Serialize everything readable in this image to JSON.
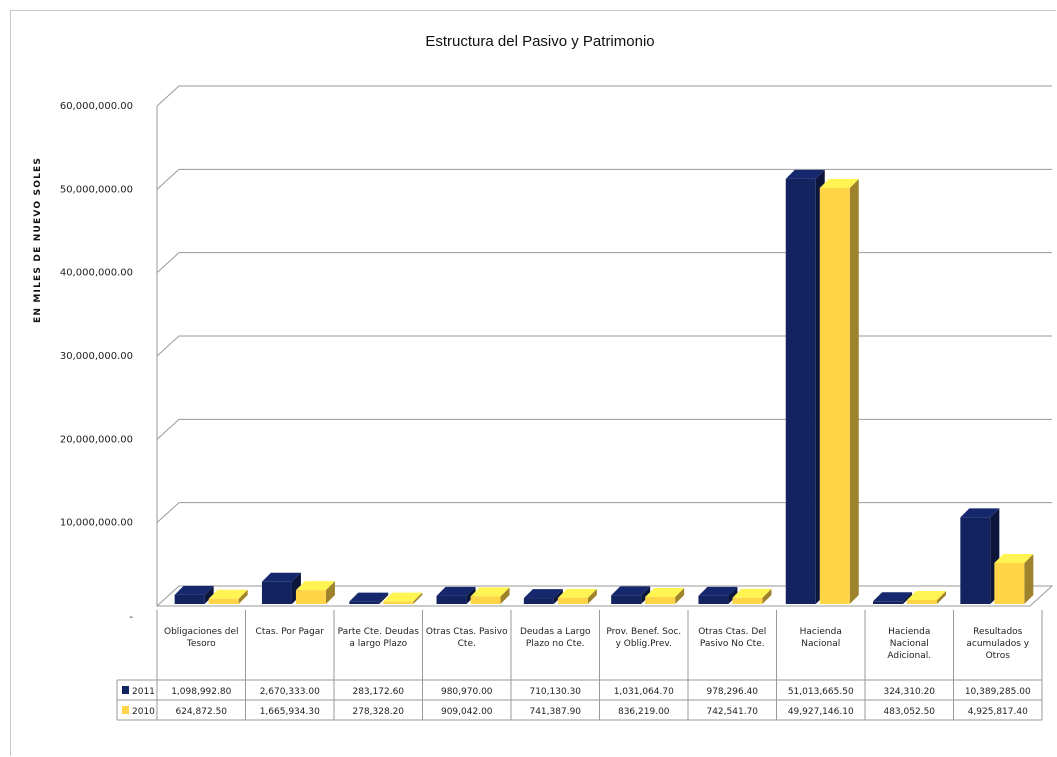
{
  "chart_data": {
    "type": "bar",
    "title": "Estructura del Pasivo y Patrimonio",
    "ylabel": "EN MILES DE NUEVO SOLES",
    "xlabel": "",
    "ylim": [
      0,
      60000000
    ],
    "y_ticks": [
      {
        "value": 0,
        "label": "-"
      },
      {
        "value": 10000000,
        "label": "10,000,000.00"
      },
      {
        "value": 20000000,
        "label": "20,000,000.00"
      },
      {
        "value": 30000000,
        "label": "30,000,000.00"
      },
      {
        "value": 40000000,
        "label": "40,000,000.00"
      },
      {
        "value": 50000000,
        "label": "50,000,000.00"
      },
      {
        "value": 60000000,
        "label": "60,000,000.00"
      }
    ],
    "grid": true,
    "legend_position": "data-table",
    "categories": [
      [
        "Obligaciones del",
        "Tesoro"
      ],
      [
        "Ctas. Por Pagar"
      ],
      [
        "Parte Cte. Deudas",
        "a largo Plazo"
      ],
      [
        "Otras Ctas. Pasivo",
        "Cte."
      ],
      [
        "Deudas a Largo",
        "Plazo no Cte."
      ],
      [
        "Prov. Benef. Soc.",
        "y Oblig.Prev."
      ],
      [
        "Otras Ctas. Del",
        "Pasivo No Cte."
      ],
      [
        "Hacienda",
        "Nacional"
      ],
      [
        "Hacienda",
        "Nacional",
        "Adicional."
      ],
      [
        "Resultados",
        "acumulados y",
        "Otros"
      ]
    ],
    "series": [
      {
        "name": "2011",
        "color": "#13235f",
        "values": [
          1098992.8,
          2670333.0,
          283172.6,
          980970.0,
          710130.3,
          1031064.7,
          978296.4,
          51013665.5,
          324310.2,
          10389285.0
        ],
        "labels": [
          "1,098,992.80",
          "2,670,333.00",
          "283,172.60",
          "980,970.00",
          "710,130.30",
          "1,031,064.70",
          "978,296.40",
          "51,013,665.50",
          "324,310.20",
          "10,389,285.00"
        ]
      },
      {
        "name": "2010",
        "color": "#ffd447",
        "values": [
          624872.5,
          1665934.3,
          278328.2,
          909042.0,
          741387.9,
          836219.0,
          742541.7,
          49927146.1,
          483052.5,
          4925817.4
        ],
        "labels": [
          "624,872.50",
          "1,665,934.30",
          "278,328.20",
          "909,042.00",
          "741,387.90",
          "836,219.00",
          "742,541.70",
          "49,927,146.10",
          "483,052.50",
          "4,925,817.40"
        ]
      }
    ]
  }
}
